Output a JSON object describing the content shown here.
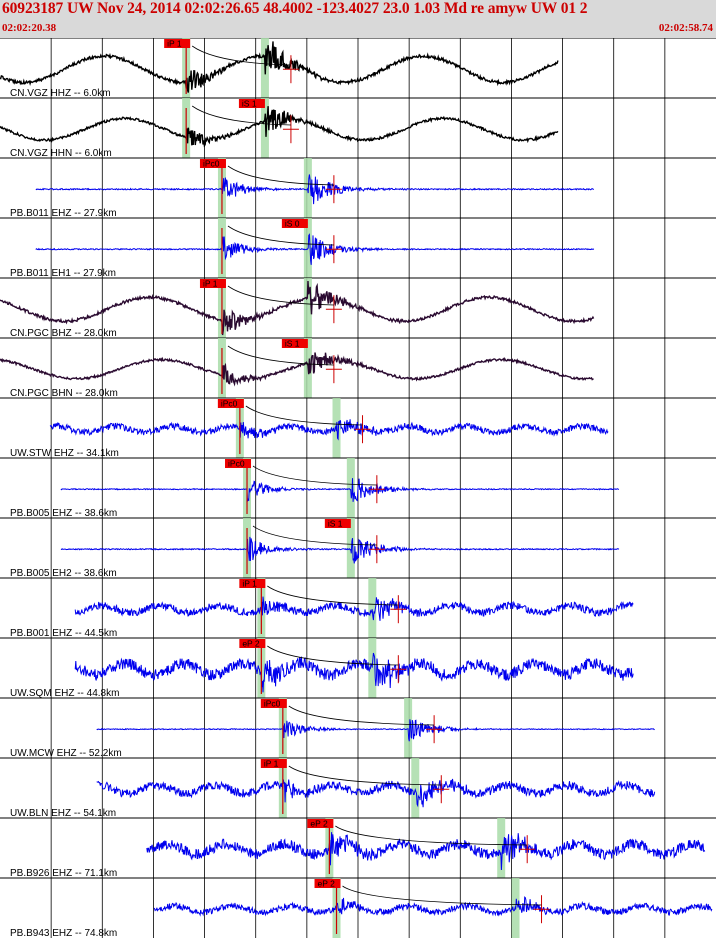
{
  "header": {
    "title": "60923187 UW Nov 24, 2014 02:02:26.65    48.4002 -123.4027 23.0 1.03 Md re amyw UW 01   2",
    "start_time": "02:02:20.38",
    "end_time": "02:02:58.74"
  },
  "colors": {
    "header_bg": "#d9d9d9",
    "header_text": "#cc0000",
    "pick_box": "#ee0000",
    "window_band": "#a8dca8",
    "trace_blue": "#0000ee",
    "trace_black": "#000000",
    "trace_dark_purple": "#2a0a30"
  },
  "traces": [
    {
      "label": "CN.VGZ HHZ -- 6.0km",
      "pick": "iP 1",
      "color": "#000000",
      "style": "long",
      "start": 0.0,
      "end": 0.78,
      "amp": 0.55,
      "onset": 0.26,
      "s": 0.37
    },
    {
      "label": "CN.VGZ HHN -- 6.0km",
      "pick": "iS 1",
      "color": "#000000",
      "style": "long",
      "start": 0.0,
      "end": 0.78,
      "amp": 0.45,
      "onset": 0.26,
      "s": 0.37
    },
    {
      "label": "PB.B011 EHZ -- 27.9km",
      "pick": "iPc0",
      "color": "#0000ee",
      "style": "spike",
      "start": 0.05,
      "end": 0.83,
      "amp": 0.5,
      "onset": 0.31,
      "s": 0.43
    },
    {
      "label": "PB.B011 EH1 -- 27.9km",
      "pick": "iS 0",
      "color": "#0000ee",
      "style": "spike",
      "start": 0.05,
      "end": 0.83,
      "amp": 0.45,
      "onset": 0.31,
      "s": 0.43
    },
    {
      "label": "CN.PGC BHZ -- 28.0km",
      "pick": "iP 1",
      "color": "#2a0a30",
      "style": "long",
      "start": 0.0,
      "end": 0.83,
      "amp": 0.5,
      "onset": 0.31,
      "s": 0.43
    },
    {
      "label": "CN.PGC BHN -- 28.0km",
      "pick": "iS 1",
      "color": "#2a0a30",
      "style": "long",
      "start": 0.0,
      "end": 0.83,
      "amp": 0.4,
      "onset": 0.31,
      "s": 0.43
    },
    {
      "label": "UW.STW EHZ -- 34.1km",
      "pick": "iPc0",
      "color": "#0000ee",
      "style": "noisy",
      "start": 0.07,
      "end": 0.85,
      "amp": 0.3,
      "onset": 0.335,
      "s": 0.47
    },
    {
      "label": "PB.B005 EHZ -- 38.6km",
      "pick": "iPc0",
      "color": "#0000ee",
      "style": "spike",
      "start": 0.085,
      "end": 0.865,
      "amp": 0.4,
      "onset": 0.345,
      "s": 0.49
    },
    {
      "label": "PB.B005 EH2 -- 38.6km",
      "pick": "iS 1",
      "color": "#0000ee",
      "style": "spike",
      "start": 0.085,
      "end": 0.865,
      "amp": 0.45,
      "onset": 0.345,
      "s": 0.49
    },
    {
      "label": "PB.B001 EHZ -- 44.5km",
      "pick": "iP 1",
      "color": "#0000ee",
      "style": "noisy",
      "start": 0.105,
      "end": 0.885,
      "amp": 0.35,
      "onset": 0.365,
      "s": 0.52
    },
    {
      "label": "UW.SQM EHZ -- 44.8km",
      "pick": "eP 2",
      "color": "#0000ee",
      "style": "noisy",
      "start": 0.105,
      "end": 0.885,
      "amp": 0.55,
      "onset": 0.365,
      "s": 0.52
    },
    {
      "label": "UW.MCW EHZ -- 52.2km",
      "pick": "iPc0",
      "color": "#0000ee",
      "style": "spike",
      "start": 0.135,
      "end": 0.915,
      "amp": 0.35,
      "onset": 0.395,
      "s": 0.57
    },
    {
      "label": "UW.BLN EHZ -- 54.1km",
      "pick": "iP 1",
      "color": "#0000ee",
      "style": "noisy",
      "start": 0.135,
      "end": 0.915,
      "amp": 0.4,
      "onset": 0.395,
      "s": 0.58
    },
    {
      "label": "PB.B926 EHZ -- 71.1km",
      "pick": "eP 2",
      "color": "#0000ee",
      "style": "noisy",
      "start": 0.205,
      "end": 0.985,
      "amp": 0.5,
      "onset": 0.46,
      "s": 0.7
    },
    {
      "label": "PB.B943 EHZ -- 74.8km",
      "pick": "eP 2",
      "color": "#0000ee",
      "style": "noisy",
      "start": 0.215,
      "end": 0.995,
      "amp": 0.3,
      "onset": 0.47,
      "s": 0.72
    }
  ]
}
